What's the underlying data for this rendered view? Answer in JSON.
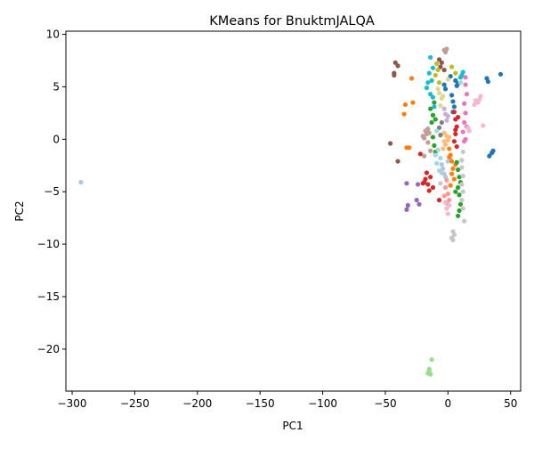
{
  "chart_data": {
    "type": "scatter",
    "title": "KMeans for BnuktmJALQA",
    "xlabel": "PC1",
    "ylabel": "PC2",
    "xlim": [
      -305,
      58
    ],
    "ylim": [
      -24,
      10.3
    ],
    "xticks": [
      -300,
      -250,
      -200,
      -150,
      -100,
      -50,
      0,
      50
    ],
    "yticks": [
      10,
      5,
      0,
      -5,
      -10,
      -15,
      -20
    ],
    "xtick_labels": [
      "−300",
      "−250",
      "−200",
      "−150",
      "−100",
      "−50",
      "0",
      "50"
    ],
    "ytick_labels": [
      "10",
      "5",
      "0",
      "−5",
      "−10",
      "−15",
      "−20"
    ],
    "grid": false,
    "legend": "none",
    "series": [
      {
        "color": "#1f77b4",
        "points": [
          [
            42,
            6.2
          ],
          [
            31,
            5.8
          ],
          [
            32,
            5.5
          ],
          [
            6,
            5.6
          ],
          [
            7,
            5.1
          ],
          [
            8,
            5.3
          ],
          [
            33,
            -1.6
          ],
          [
            35,
            -1.3
          ],
          [
            36,
            -1.1
          ],
          [
            3,
            4.2
          ],
          [
            4,
            3.6
          ],
          [
            5,
            3.1
          ],
          [
            4,
            2.6
          ],
          [
            -2,
            4.8
          ],
          [
            -3,
            5.2
          ],
          [
            2,
            6.0
          ]
        ]
      },
      {
        "color": "#aec7e8",
        "points": [
          [
            -293,
            -4.1
          ],
          [
            -4,
            -2.8
          ],
          [
            -3,
            -3.3
          ],
          [
            -2,
            -3.6
          ],
          [
            -5,
            -2.4
          ],
          [
            0,
            -2.1
          ],
          [
            2,
            -1.9
          ]
        ]
      },
      {
        "color": "#ff7f0e",
        "points": [
          [
            -29,
            5.8
          ],
          [
            -34,
            3.3
          ],
          [
            -28,
            3.5
          ],
          [
            -35,
            2.4
          ],
          [
            -33,
            -0.8
          ],
          [
            -31,
            -0.8
          ],
          [
            1,
            -0.9
          ],
          [
            2,
            -1.5
          ],
          [
            3,
            -2.1
          ],
          [
            4,
            -2.8
          ],
          [
            3,
            -3.3
          ],
          [
            5,
            -3.8
          ],
          [
            2,
            -4.4
          ],
          [
            6,
            -2.4
          ],
          [
            1,
            -1.7
          ]
        ]
      },
      {
        "color": "#ffbb78",
        "points": [
          [
            -3,
            -0.2
          ],
          [
            -2,
            -0.5
          ],
          [
            -4,
            -0.9
          ],
          [
            -1,
            0.3
          ],
          [
            0,
            -0.1
          ],
          [
            -3,
            0.6
          ],
          [
            1,
            0.2
          ]
        ]
      },
      {
        "color": "#2ca02c",
        "points": [
          [
            -12,
            2.3
          ],
          [
            -10,
            1.9
          ],
          [
            -13,
            1.6
          ],
          [
            -11,
            3.5
          ],
          [
            -14,
            2.9
          ],
          [
            -12,
            0.2
          ],
          [
            -11,
            -0.6
          ],
          [
            -10,
            -1.2
          ],
          [
            7,
            -2.2
          ],
          [
            8,
            -2.9
          ],
          [
            9,
            -3.6
          ],
          [
            10,
            -4.1
          ],
          [
            8,
            -4.6
          ],
          [
            9,
            -5.3
          ],
          [
            10,
            -6.2
          ],
          [
            9,
            -6.8
          ],
          [
            8,
            -7.3
          ],
          [
            6,
            -5.0
          ]
        ]
      },
      {
        "color": "#98df8a",
        "points": [
          [
            -15,
            -21.9
          ],
          [
            -16,
            -22.3
          ],
          [
            -15,
            -22.1
          ],
          [
            -13,
            -21.0
          ],
          [
            -14,
            -22.4
          ]
        ]
      },
      {
        "color": "#d62728",
        "points": [
          [
            5,
            2.6
          ],
          [
            6,
            1.9
          ],
          [
            7,
            1.2
          ],
          [
            6,
            0.5
          ],
          [
            5,
            -0.2
          ],
          [
            7,
            -0.7
          ],
          [
            6,
            0.9
          ],
          [
            8,
            2.1
          ],
          [
            -17,
            -3.2
          ],
          [
            -18,
            -3.8
          ],
          [
            -16,
            -4.3
          ],
          [
            -15,
            -4.9
          ],
          [
            -19,
            -4.1
          ],
          [
            -14,
            -3.6
          ],
          [
            -22,
            -1.4
          ],
          [
            -20,
            -4.2
          ],
          [
            -7,
            -5.8
          ],
          [
            -12,
            -4.6
          ]
        ]
      },
      {
        "color": "#ff9896",
        "points": [
          [
            -1,
            -3.9
          ],
          [
            -2,
            -4.6
          ],
          [
            0,
            -5.2
          ],
          [
            -1,
            -6.1
          ],
          [
            -3,
            -5.4
          ],
          [
            1,
            -5.8
          ]
        ]
      },
      {
        "color": "#9467bd",
        "points": [
          [
            -33,
            -4.2
          ],
          [
            -32,
            -6.3
          ],
          [
            -33,
            -6.7
          ],
          [
            -24,
            -4.3
          ],
          [
            -25,
            -5.8
          ],
          [
            -23,
            -6.2
          ]
        ]
      },
      {
        "color": "#c5b0d5",
        "points": [
          [
            -2,
            2.4
          ],
          [
            -1,
            1.8
          ],
          [
            -3,
            2.9
          ],
          [
            0,
            2.2
          ]
        ]
      },
      {
        "color": "#8c564b",
        "points": [
          [
            -42,
            7.3
          ],
          [
            -40,
            7.0
          ],
          [
            -43,
            6.1
          ],
          [
            -43,
            6.3
          ],
          [
            -46,
            -0.4
          ],
          [
            -40,
            -2.1
          ],
          [
            -6,
            6.9
          ],
          [
            -5,
            7.3
          ],
          [
            -3,
            6.6
          ],
          [
            -7,
            7.6
          ]
        ]
      },
      {
        "color": "#c49c94",
        "points": [
          [
            -18,
            0.8
          ],
          [
            -17,
            0.5
          ],
          [
            -19,
            0.1
          ],
          [
            -16,
            -0.3
          ],
          [
            -15,
            0.6
          ],
          [
            -20,
            0.3
          ],
          [
            -16,
            1.0
          ],
          [
            -14,
            -1.1
          ],
          [
            -3,
            8.5
          ],
          [
            -2,
            8.3
          ],
          [
            -1,
            8.6
          ],
          [
            -19,
            -1.6
          ]
        ]
      },
      {
        "color": "#e377c2",
        "points": [
          [
            14,
            5.9
          ],
          [
            14,
            5.2
          ],
          [
            15,
            4.3
          ],
          [
            13,
            3.4
          ],
          [
            14,
            2.5
          ],
          [
            13,
            1.6
          ],
          [
            12,
            0.7
          ],
          [
            14,
            0.0
          ],
          [
            15,
            1.2
          ],
          [
            13,
            -0.2
          ]
        ]
      },
      {
        "color": "#f7b6d2",
        "points": [
          [
            22,
            3.7
          ],
          [
            24,
            3.5
          ],
          [
            25,
            3.8
          ],
          [
            26,
            4.1
          ],
          [
            28,
            1.3
          ],
          [
            21,
            3.3
          ],
          [
            -1,
            -6.6
          ],
          [
            0,
            -7.1
          ],
          [
            -2,
            -6.0
          ],
          [
            1,
            -6.3
          ],
          [
            16,
            1.1
          ],
          [
            17,
            0.8
          ]
        ]
      },
      {
        "color": "#7f7f7f",
        "points": [
          [
            -7,
            1.1
          ],
          [
            -6,
            0.4
          ],
          [
            -5,
            1.6
          ]
        ]
      },
      {
        "color": "#c7c7c7",
        "points": [
          [
            11,
            -2.7
          ],
          [
            12,
            -3.5
          ],
          [
            11,
            -4.3
          ],
          [
            12,
            -5.0
          ],
          [
            11,
            -5.8
          ],
          [
            12,
            -6.6
          ],
          [
            13,
            -7.8
          ],
          [
            4,
            -8.8
          ],
          [
            5,
            -9.1
          ],
          [
            3,
            -9.4
          ],
          [
            4,
            -9.6
          ],
          [
            -6,
            -4.2
          ],
          [
            -5,
            -3.2
          ],
          [
            11,
            -2.0
          ],
          [
            12,
            -1.2
          ]
        ]
      },
      {
        "color": "#bcbd22",
        "points": [
          [
            -9,
            7.2
          ],
          [
            -8,
            6.6
          ],
          [
            -10,
            6.1
          ],
          [
            -7,
            5.4
          ],
          [
            3,
            6.9
          ],
          [
            6,
            6.3
          ]
        ]
      },
      {
        "color": "#dbdb8d",
        "points": [
          [
            -7,
            4.4
          ],
          [
            -5,
            3.9
          ],
          [
            -6,
            3.2
          ],
          [
            -8,
            4.8
          ],
          [
            -4,
            4.1
          ],
          [
            0,
            5.7
          ]
        ]
      },
      {
        "color": "#17becf",
        "points": [
          [
            -14,
            7.8
          ],
          [
            -12,
            6.8
          ],
          [
            -15,
            6.3
          ],
          [
            -13,
            5.6
          ],
          [
            -16,
            5.4
          ],
          [
            -17,
            4.9
          ],
          [
            -11,
            3.1
          ],
          [
            -14,
            4.3
          ],
          [
            11,
            6.1
          ],
          [
            12,
            6.4
          ],
          [
            10,
            5.9
          ],
          [
            -12,
            4.0
          ]
        ]
      },
      {
        "color": "#9edae5",
        "points": [
          [
            -10,
            -1.5
          ],
          [
            -9,
            -2.3
          ],
          [
            -8,
            -1.0
          ],
          [
            -7,
            -3.0
          ],
          [
            -6,
            -1.8
          ],
          [
            10,
            5.4
          ],
          [
            -9,
            0.8
          ]
        ]
      }
    ]
  }
}
